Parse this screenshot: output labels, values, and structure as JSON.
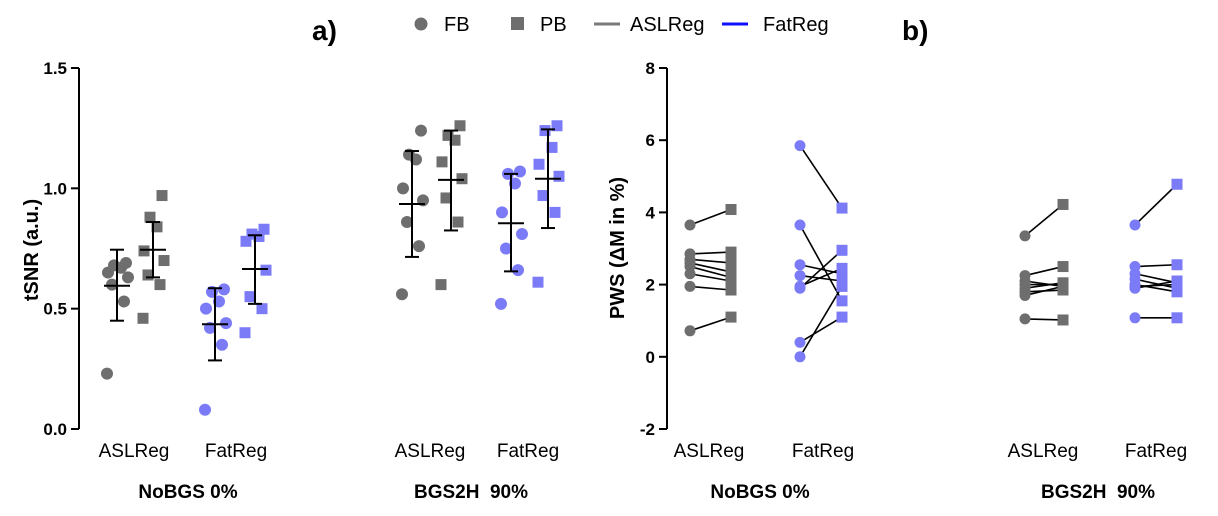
{
  "panel_labels": {
    "a": "a)",
    "b": "b)"
  },
  "legend": [
    {
      "label": "FB",
      "marker": "circle",
      "color": "#6e6e6e"
    },
    {
      "label": "PB",
      "marker": "square",
      "color": "#6e6e6e"
    },
    {
      "label": "ASLReg",
      "marker": "line",
      "color": "#7a7a7a"
    },
    {
      "label": "FatReg",
      "marker": "line",
      "color": "#1010ff"
    }
  ],
  "colors": {
    "aslreg_marker": "#6e6e6e",
    "fatreg_marker": "#7b7bf7",
    "paired_fatreg_overlap": "#2a2ad8",
    "line": "#000000"
  },
  "chart_data": [
    {
      "type": "scatter",
      "panel": "a",
      "ylabel": "tSNR (a.u.)",
      "ylim": [
        0,
        1.5
      ],
      "yticks": [
        0.0,
        0.5,
        1.0,
        1.5
      ],
      "ytick_labels": [
        "0.0",
        "0.5",
        "1.0",
        "1.5"
      ],
      "groups": [
        {
          "label": "NoBGS 0%",
          "categories": [
            {
              "label": "ASLReg",
              "series": [
                {
                  "name": "FB",
                  "values": [
                    0.23,
                    0.53,
                    0.6,
                    0.63,
                    0.65,
                    0.67,
                    0.68,
                    0.69
                  ],
                  "mean": 0.595,
                  "sd_lower": 0.45,
                  "sd_upper": 0.745
                },
                {
                  "name": "PB",
                  "values": [
                    0.46,
                    0.6,
                    0.64,
                    0.7,
                    0.74,
                    0.84,
                    0.88,
                    0.97
                  ],
                  "mean": 0.745,
                  "sd_lower": 0.63,
                  "sd_upper": 0.86
                }
              ]
            },
            {
              "label": "FatReg",
              "series": [
                {
                  "name": "FB",
                  "values": [
                    0.08,
                    0.35,
                    0.42,
                    0.44,
                    0.5,
                    0.53,
                    0.57,
                    0.58
                  ],
                  "mean": 0.435,
                  "sd_lower": 0.285,
                  "sd_upper": 0.585
                },
                {
                  "name": "PB",
                  "values": [
                    0.4,
                    0.5,
                    0.55,
                    0.66,
                    0.78,
                    0.8,
                    0.81,
                    0.83
                  ],
                  "mean": 0.665,
                  "sd_lower": 0.52,
                  "sd_upper": 0.805
                }
              ]
            }
          ]
        },
        {
          "label": "BGS2H  90%",
          "categories": [
            {
              "label": "ASLReg",
              "series": [
                {
                  "name": "FB",
                  "values": [
                    0.56,
                    0.76,
                    0.86,
                    0.95,
                    1.0,
                    1.12,
                    1.14,
                    1.24
                  ],
                  "mean": 0.935,
                  "sd_lower": 0.715,
                  "sd_upper": 1.155
                },
                {
                  "name": "PB",
                  "values": [
                    0.6,
                    0.86,
                    0.96,
                    1.04,
                    1.11,
                    1.2,
                    1.22,
                    1.26
                  ],
                  "mean": 1.035,
                  "sd_lower": 0.825,
                  "sd_upper": 1.24
                }
              ]
            },
            {
              "label": "FatReg",
              "series": [
                {
                  "name": "FB",
                  "values": [
                    0.52,
                    0.66,
                    0.75,
                    0.81,
                    0.9,
                    1.02,
                    1.06,
                    1.07
                  ],
                  "mean": 0.855,
                  "sd_lower": 0.655,
                  "sd_upper": 1.06
                },
                {
                  "name": "PB",
                  "values": [
                    0.61,
                    0.9,
                    0.97,
                    1.05,
                    1.1,
                    1.17,
                    1.24,
                    1.26
                  ],
                  "mean": 1.04,
                  "sd_lower": 0.835,
                  "sd_upper": 1.245
                }
              ]
            }
          ]
        }
      ]
    },
    {
      "type": "paired-line",
      "panel": "b",
      "ylabel": "PWS (ΔM in %)",
      "ylim": [
        -2,
        8
      ],
      "yticks": [
        -2,
        0,
        2,
        4,
        6,
        8
      ],
      "ytick_labels": [
        "-2",
        "0",
        "2",
        "4",
        "6",
        "8"
      ],
      "groups": [
        {
          "label": "NoBGS 0%",
          "categories": [
            {
              "label": "ASLReg",
              "pairs": [
                [
                  3.65,
                  4.08
                ],
                [
                  2.85,
                  2.9
                ],
                [
                  2.7,
                  2.6
                ],
                [
                  2.6,
                  2.35
                ],
                [
                  2.5,
                  2.2
                ],
                [
                  2.3,
                  2.1
                ],
                [
                  1.95,
                  1.85
                ],
                [
                  0.72,
                  1.1
                ]
              ]
            },
            {
              "label": "FatReg",
              "pairs": [
                [
                  5.85,
                  4.12
                ],
                [
                  3.65,
                  1.55
                ],
                [
                  2.55,
                  2.3
                ],
                [
                  2.25,
                  2.1
                ],
                [
                  1.95,
                  2.45
                ],
                [
                  1.9,
                  2.95
                ],
                [
                  0.4,
                  1.1
                ],
                [
                  0.0,
                  1.95
                ]
              ]
            }
          ]
        },
        {
          "label": "BGS2H  90%",
          "categories": [
            {
              "label": "ASLReg",
              "pairs": [
                [
                  3.35,
                  4.22
                ],
                [
                  2.25,
                  2.5
                ],
                [
                  2.1,
                  1.95
                ],
                [
                  2.0,
                  2.0
                ],
                [
                  1.9,
                  2.05
                ],
                [
                  1.8,
                  1.85
                ],
                [
                  1.7,
                  1.95
                ],
                [
                  1.05,
                  1.02
                ]
              ]
            },
            {
              "label": "FatReg",
              "pairs": [
                [
                  3.65,
                  4.78
                ],
                [
                  2.5,
                  2.55
                ],
                [
                  2.3,
                  2.05
                ],
                [
                  2.15,
                  1.9
                ],
                [
                  2.0,
                  1.8
                ],
                [
                  1.95,
                  2.0
                ],
                [
                  1.9,
                  2.1
                ],
                [
                  1.08,
                  1.08
                ]
              ]
            }
          ]
        }
      ]
    }
  ]
}
